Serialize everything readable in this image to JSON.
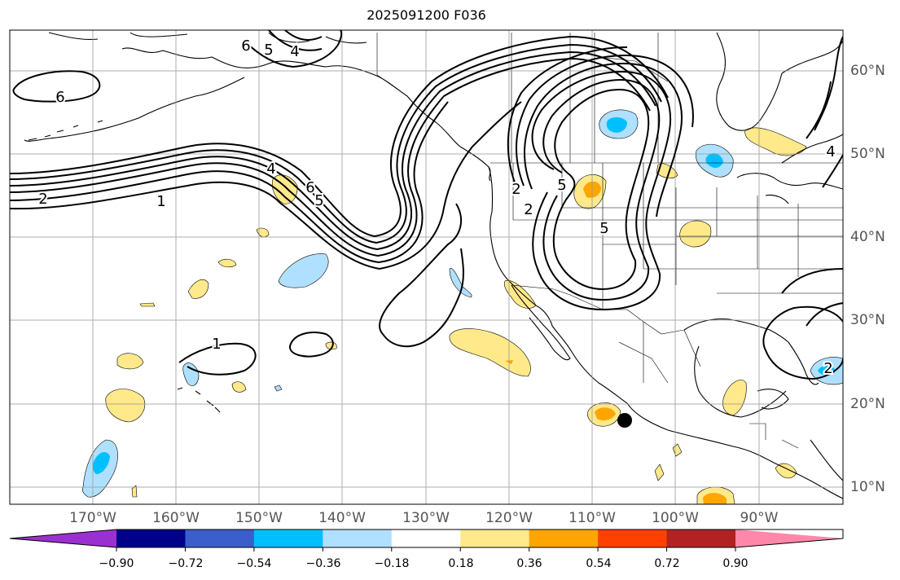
{
  "title": "2025091200 F036",
  "longitude_labels": [
    "170°W",
    "160°W",
    "150°W",
    "140°W",
    "130°W",
    "120°W",
    "110°W",
    "100°W",
    "90°W"
  ],
  "latitude_labels": [
    "60°N",
    "50°N",
    "40°N",
    "30°N",
    "20°N",
    "10°N"
  ],
  "colorbar": {
    "colors": [
      "#9b30d0",
      "#00008b",
      "#3a5fcd",
      "#00bfff",
      "#b0e0ff",
      "#ffffff",
      "#ffe98a",
      "#ffa500",
      "#ff4000",
      "#b22222",
      "#ff88aa"
    ],
    "tick_labels": [
      "−0.90",
      "−0.72",
      "−0.54",
      "−0.36",
      "−0.18",
      "0.18",
      "0.36",
      "0.54",
      "0.72",
      "0.90"
    ]
  },
  "contour_labels": [
    "6",
    "6",
    "5",
    "4",
    "2",
    "1",
    "4",
    "6",
    "5",
    "1",
    "2",
    "4",
    "5",
    "2",
    "5",
    "2"
  ]
}
